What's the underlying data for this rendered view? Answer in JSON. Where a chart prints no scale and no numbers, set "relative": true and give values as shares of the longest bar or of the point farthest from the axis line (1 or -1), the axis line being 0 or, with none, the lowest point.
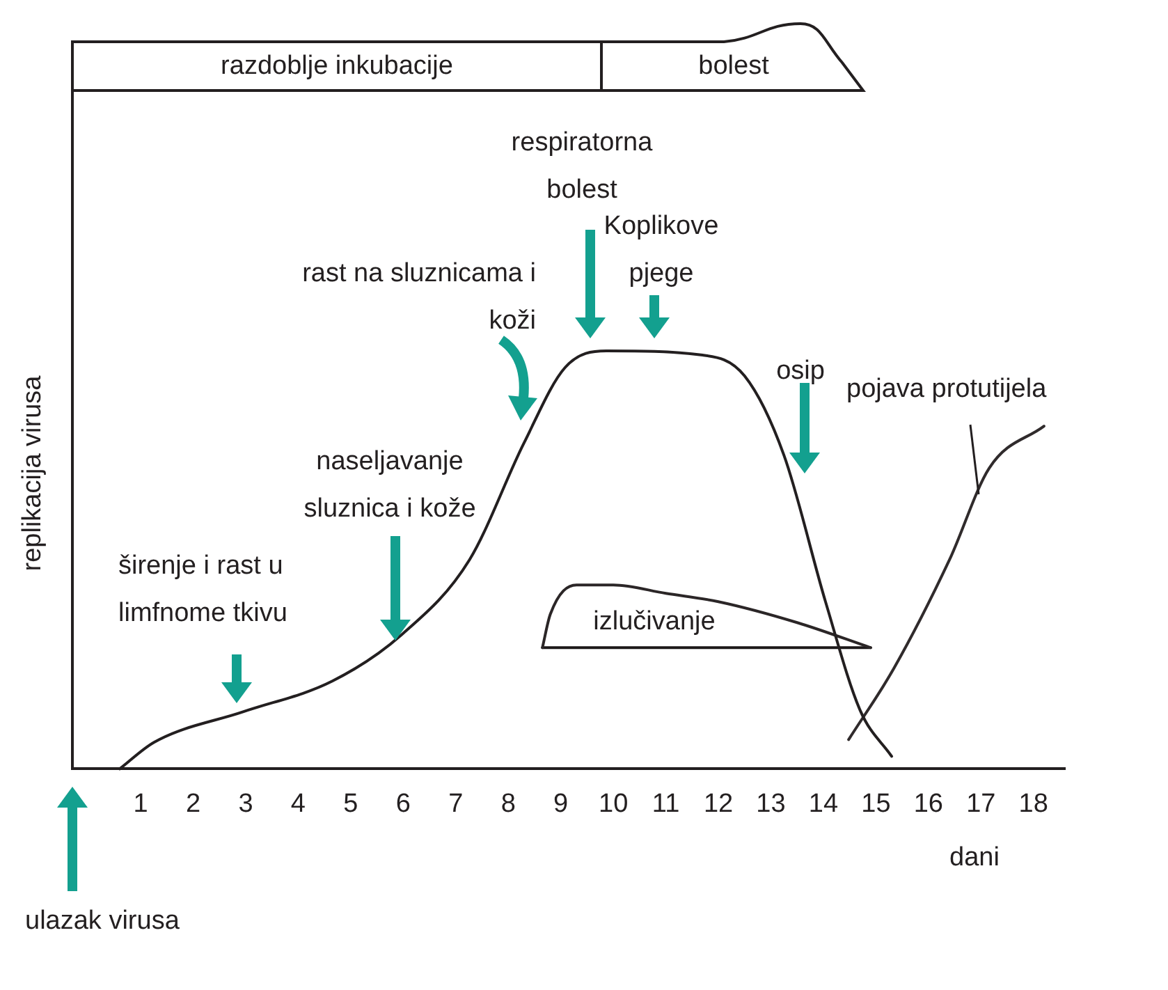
{
  "chart_data": {
    "type": "line",
    "relative": true,
    "ylabel": "replikacija virusa",
    "xlabel": "dani",
    "xlim": [
      -0.3,
      18.6
    ],
    "xticks": [
      1,
      2,
      3,
      4,
      5,
      6,
      7,
      8,
      9,
      10,
      11,
      12,
      13,
      14,
      15,
      16,
      17,
      18
    ],
    "legend": false,
    "grid": false,
    "marker": "none",
    "line_style": "solid",
    "series": [
      {
        "color": "#231f20",
        "x": [
          0.6,
          1.26,
          2.96,
          4.65,
          5.96,
          7.26,
          8.3,
          9.08,
          9.87,
          11.7,
          12.5,
          13.25,
          14.04,
          14.7,
          15.3
        ],
        "values": [
          0,
          0.064,
          0.137,
          0.21,
          0.32,
          0.5,
          0.78,
          0.96,
          1,
          0.99,
          0.94,
          0.75,
          0.4,
          0.14,
          0.03
        ]
      },
      {
        "color": "#2b2627",
        "x": [
          8.65,
          8.8,
          9.3,
          10,
          11,
          12,
          13.5,
          14.9
        ],
        "values": [
          0.29,
          0.37,
          0.44,
          0.44,
          0.42,
          0.4,
          0.35,
          0.29
        ]
      },
      {
        "color": "#1c1819",
        "x": [
          8.65,
          14.9
        ],
        "values": [
          0.29,
          0.29
        ]
      },
      {
        "color": "#302b2c",
        "x": [
          14.48,
          15.34,
          16.4,
          17.16,
          18.2
        ],
        "values": [
          0.07,
          0.24,
          0.5,
          0.72,
          0.82
        ]
      }
    ],
    "annotations": [
      "širenje i rast u limfnome tkivu",
      "naseljavanje sluznica i kože",
      "rast na sluznicama i koži",
      "respiratorna bolest",
      "Koplikove pjege",
      "osip",
      "ulazak virusa",
      "izlučivanje",
      "pojava protutijela",
      "razdoblje inkubacije",
      "bolest"
    ]
  }
}
